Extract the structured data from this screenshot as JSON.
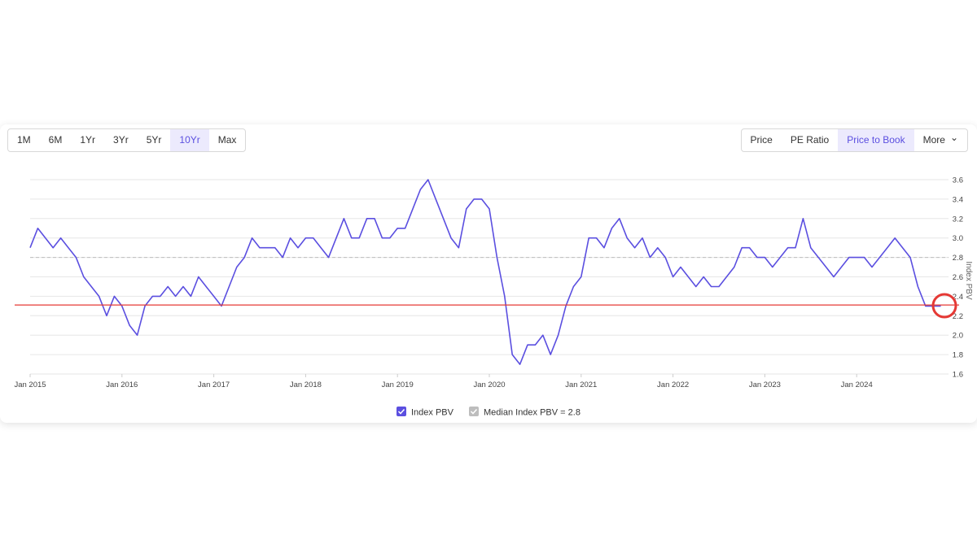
{
  "toolbar": {
    "range_buttons": [
      "1M",
      "6M",
      "1Yr",
      "3Yr",
      "5Yr",
      "10Yr",
      "Max"
    ],
    "active_range": "10Yr",
    "view_buttons": [
      "Price",
      "PE Ratio",
      "Price to Book",
      "More"
    ],
    "active_view": "Price to Book"
  },
  "chart_data": {
    "type": "line",
    "y_label": "Index PBV",
    "x": [
      "2015-01",
      "2015-02",
      "2015-03",
      "2015-04",
      "2015-05",
      "2015-06",
      "2015-07",
      "2015-08",
      "2015-09",
      "2015-10",
      "2015-11",
      "2015-12",
      "2016-01",
      "2016-02",
      "2016-03",
      "2016-04",
      "2016-05",
      "2016-06",
      "2016-07",
      "2016-08",
      "2016-09",
      "2016-10",
      "2016-11",
      "2016-12",
      "2017-01",
      "2017-02",
      "2017-03",
      "2017-04",
      "2017-05",
      "2017-06",
      "2017-07",
      "2017-08",
      "2017-09",
      "2017-10",
      "2017-11",
      "2017-12",
      "2018-01",
      "2018-02",
      "2018-03",
      "2018-04",
      "2018-05",
      "2018-06",
      "2018-07",
      "2018-08",
      "2018-09",
      "2018-10",
      "2018-11",
      "2018-12",
      "2019-01",
      "2019-02",
      "2019-03",
      "2019-04",
      "2019-05",
      "2019-06",
      "2019-07",
      "2019-08",
      "2019-09",
      "2019-10",
      "2019-11",
      "2019-12",
      "2020-01",
      "2020-02",
      "2020-03",
      "2020-04",
      "2020-05",
      "2020-06",
      "2020-07",
      "2020-08",
      "2020-09",
      "2020-10",
      "2020-11",
      "2020-12",
      "2021-01",
      "2021-02",
      "2021-03",
      "2021-04",
      "2021-05",
      "2021-06",
      "2021-07",
      "2021-08",
      "2021-09",
      "2021-10",
      "2021-11",
      "2021-12",
      "2022-01",
      "2022-02",
      "2022-03",
      "2022-04",
      "2022-05",
      "2022-06",
      "2022-07",
      "2022-08",
      "2022-09",
      "2022-10",
      "2022-11",
      "2022-12",
      "2023-01",
      "2023-02",
      "2023-03",
      "2023-04",
      "2023-05",
      "2023-06",
      "2023-07",
      "2023-08",
      "2023-09",
      "2023-10",
      "2023-11",
      "2023-12",
      "2024-01",
      "2024-02",
      "2024-03",
      "2024-04",
      "2024-05",
      "2024-06",
      "2024-07",
      "2024-08",
      "2024-09",
      "2024-10",
      "2024-11",
      "2024-12"
    ],
    "series": [
      {
        "name": "Index PBV",
        "color": "#5b4fe0",
        "values": [
          2.9,
          3.1,
          3.0,
          2.9,
          3.0,
          2.9,
          2.8,
          2.6,
          2.5,
          2.4,
          2.2,
          2.4,
          2.3,
          2.1,
          2.0,
          2.3,
          2.4,
          2.4,
          2.5,
          2.4,
          2.5,
          2.4,
          2.6,
          2.5,
          2.4,
          2.3,
          2.5,
          2.7,
          2.8,
          3.0,
          2.9,
          2.9,
          2.9,
          2.8,
          3.0,
          2.9,
          3.0,
          3.0,
          2.9,
          2.8,
          3.0,
          3.2,
          3.0,
          3.0,
          3.2,
          3.2,
          3.0,
          3.0,
          3.1,
          3.1,
          3.3,
          3.5,
          3.6,
          3.4,
          3.2,
          3.0,
          2.9,
          3.3,
          3.4,
          3.4,
          3.3,
          2.8,
          2.4,
          1.8,
          1.7,
          1.9,
          1.9,
          2.0,
          1.8,
          2.0,
          2.3,
          2.5,
          2.6,
          3.0,
          3.0,
          2.9,
          3.1,
          3.2,
          3.0,
          2.9,
          3.0,
          2.8,
          2.9,
          2.8,
          2.6,
          2.7,
          2.6,
          2.5,
          2.6,
          2.5,
          2.5,
          2.6,
          2.7,
          2.9,
          2.9,
          2.8,
          2.8,
          2.7,
          2.8,
          2.9,
          2.9,
          3.2,
          2.9,
          2.8,
          2.7,
          2.6,
          2.7,
          2.8,
          2.8,
          2.8,
          2.7,
          2.8,
          2.9,
          3.0,
          2.9,
          2.8,
          2.5,
          2.3,
          2.3,
          2.3
        ]
      },
      {
        "name": "Median Index PBV = 2.8",
        "color": "#bdbdbd",
        "median": 2.8
      }
    ],
    "reference_line": {
      "value": 2.31,
      "color": "#e53935"
    },
    "xlim": [
      "2015-01",
      "2025-01"
    ],
    "xticks": [
      {
        "value": "2015-01",
        "label": "Jan 2015"
      },
      {
        "value": "2016-01",
        "label": "Jan 2016"
      },
      {
        "value": "2017-01",
        "label": "Jan 2017"
      },
      {
        "value": "2018-01",
        "label": "Jan 2018"
      },
      {
        "value": "2019-01",
        "label": "Jan 2019"
      },
      {
        "value": "2020-01",
        "label": "Jan 2020"
      },
      {
        "value": "2021-01",
        "label": "Jan 2021"
      },
      {
        "value": "2022-01",
        "label": "Jan 2022"
      },
      {
        "value": "2023-01",
        "label": "Jan 2023"
      },
      {
        "value": "2024-01",
        "label": "Jan 2024"
      }
    ],
    "ylim": [
      1.6,
      3.6
    ],
    "yticks": [
      1.6,
      1.8,
      {
        "value": 2,
        "label": "2.0"
      },
      2.2,
      2.4,
      2.6,
      2.8,
      {
        "value": 3,
        "label": "3.0"
      },
      3.2,
      3.4,
      3.6
    ],
    "grid": true
  }
}
